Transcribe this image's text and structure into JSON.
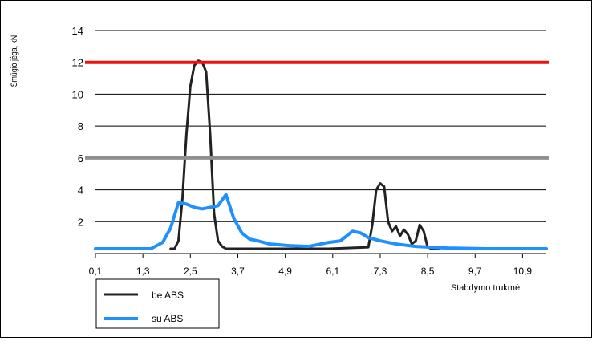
{
  "chart_data": {
    "type": "line",
    "ylabel": "Smūgio jėga, kN",
    "xlabel": "Stabdymo trukmė",
    "ylim": [
      0,
      14
    ],
    "xlim": [
      0.1,
      11.5
    ],
    "yticks": [
      2,
      4,
      6,
      8,
      10,
      12,
      14
    ],
    "xticks": [
      "0,1",
      "1,3",
      "2,5",
      "3,7",
      "4,9",
      "6,1",
      "7,3",
      "8,5",
      "9,7",
      "10,9"
    ],
    "grid": "horizontal",
    "legend_position": "bottom-left",
    "reference_lines": [
      {
        "y": 12,
        "color": "#ee1111"
      },
      {
        "y": 6,
        "color": "#909090"
      }
    ],
    "series": [
      {
        "name": "be ABS",
        "color": "#222222",
        "x": [
          2.0,
          2.1,
          2.2,
          2.3,
          2.4,
          2.5,
          2.6,
          2.7,
          2.8,
          2.9,
          3.0,
          3.1,
          3.2,
          3.3,
          3.4,
          3.6,
          4.0,
          5.0,
          6.0,
          7.0,
          7.1,
          7.2,
          7.3,
          7.4,
          7.5,
          7.6,
          7.7,
          7.8,
          7.9,
          8.0,
          8.1,
          8.2,
          8.3,
          8.4,
          8.5,
          8.6,
          8.7,
          8.8
        ],
        "y": [
          0.3,
          0.3,
          0.8,
          3.5,
          7.5,
          10.5,
          11.8,
          12.1,
          12.0,
          11.4,
          7.5,
          2.5,
          0.8,
          0.45,
          0.3,
          0.3,
          0.3,
          0.3,
          0.3,
          0.4,
          1.8,
          4.0,
          4.4,
          4.2,
          2.0,
          1.4,
          1.7,
          1.1,
          1.5,
          1.2,
          0.6,
          0.8,
          1.8,
          1.4,
          0.4,
          0.3,
          0.3,
          0.3
        ]
      },
      {
        "name": "su ABS",
        "color": "#1e90ff",
        "x": [
          0.1,
          1.5,
          1.8,
          2.0,
          2.2,
          2.4,
          2.6,
          2.8,
          3.0,
          3.2,
          3.4,
          3.6,
          3.8,
          3.9,
          4.0,
          4.2,
          4.5,
          5.0,
          5.5,
          6.0,
          6.3,
          6.6,
          6.8,
          7.0,
          7.3,
          7.7,
          8.2,
          9.0,
          10.0,
          11.5
        ],
        "y": [
          0.3,
          0.3,
          0.7,
          1.6,
          3.2,
          3.1,
          2.9,
          2.8,
          2.9,
          3.0,
          3.7,
          2.2,
          1.3,
          1.1,
          0.9,
          0.8,
          0.6,
          0.5,
          0.45,
          0.7,
          0.8,
          1.4,
          1.3,
          1.0,
          0.8,
          0.6,
          0.45,
          0.35,
          0.3,
          0.3
        ]
      }
    ]
  }
}
